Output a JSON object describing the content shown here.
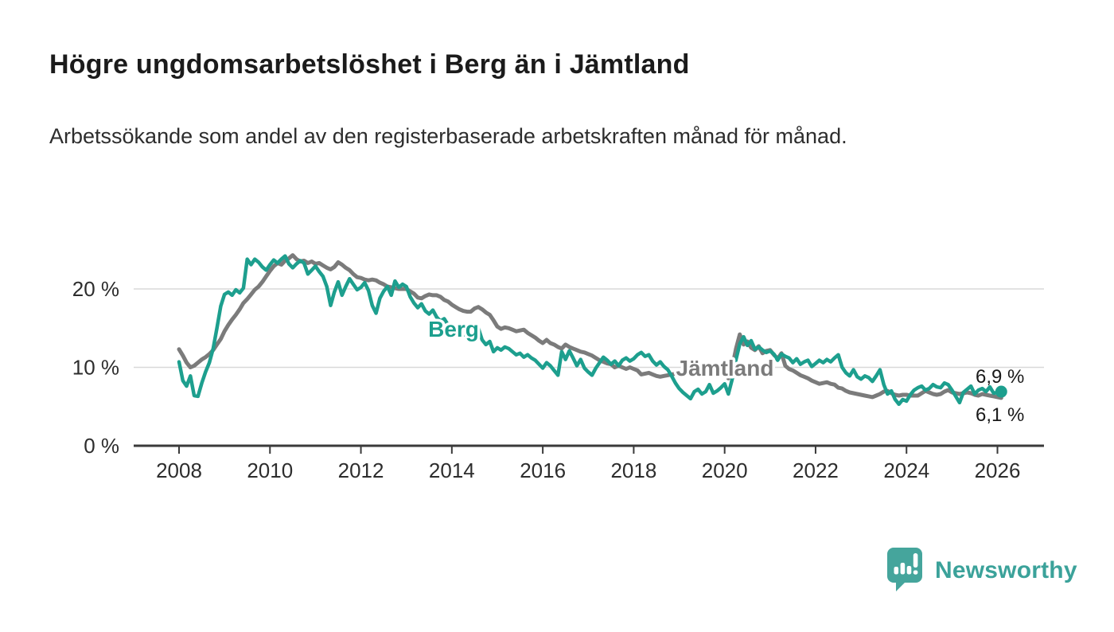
{
  "header": {
    "title": "Högre ungdomsarbetslöshet i Berg än i Jämtland",
    "subtitle": "Arbetssökande som andel av den registerbaserade arbetskraften månad för månad."
  },
  "branding": {
    "name": "Newsworthy",
    "logo_icon": "bar-chart-speech-bubble-icon",
    "logo_color": "#45a59c",
    "text_color": "#3ba29a"
  },
  "chart_data": {
    "type": "line",
    "title": "Högre ungdomsarbetslöshet i Berg än i Jämtland",
    "xlabel": "",
    "ylabel": "",
    "x_unit": "year-month",
    "x_start_year": 2008,
    "x_step_months": 1,
    "xlim": [
      2007.0,
      2027.05
    ],
    "ylim": [
      0,
      26.5
    ],
    "grid": "horizontal",
    "yticks": [
      {
        "value": 0,
        "label": "0 %"
      },
      {
        "value": 10,
        "label": "10 %"
      },
      {
        "value": 20,
        "label": "20 %"
      }
    ],
    "xticks": [
      {
        "value": 2008,
        "label": "2008"
      },
      {
        "value": 2010,
        "label": "2010"
      },
      {
        "value": 2012,
        "label": "2012"
      },
      {
        "value": 2014,
        "label": "2014"
      },
      {
        "value": 2016,
        "label": "2016"
      },
      {
        "value": 2018,
        "label": "2018"
      },
      {
        "value": 2020,
        "label": "2020"
      },
      {
        "value": 2022,
        "label": "2022"
      },
      {
        "value": 2024,
        "label": "2024"
      },
      {
        "value": 2026,
        "label": "2026"
      }
    ],
    "series": [
      {
        "name": "Jämtland",
        "color": "#7b7b7b",
        "stroke_width": 5,
        "end_value": 6.1,
        "end_label": "6,1 %",
        "values": [
          12.3,
          11.5,
          10.6,
          10.0,
          10.2,
          10.6,
          11.0,
          11.3,
          11.7,
          12.2,
          12.9,
          13.6,
          14.6,
          15.4,
          16.1,
          16.7,
          17.4,
          18.2,
          18.7,
          19.3,
          19.9,
          20.3,
          20.9,
          21.6,
          22.3,
          22.9,
          23.3,
          23.1,
          23.6,
          23.9,
          24.3,
          23.8,
          23.5,
          23.6,
          23.3,
          23.5,
          23.2,
          23.3,
          23.0,
          22.7,
          22.5,
          22.8,
          23.4,
          23.1,
          22.7,
          22.4,
          21.9,
          21.5,
          21.4,
          21.2,
          21.1,
          21.2,
          21.1,
          20.8,
          20.6,
          20.3,
          20.2,
          20.1,
          20.0,
          20.0,
          20.0,
          19.7,
          19.4,
          18.9,
          18.8,
          19.1,
          19.3,
          19.2,
          19.2,
          19.0,
          18.6,
          18.4,
          18.0,
          17.7,
          17.4,
          17.2,
          17.1,
          17.1,
          17.5,
          17.7,
          17.4,
          17.0,
          16.7,
          16.0,
          15.2,
          14.9,
          15.1,
          15.0,
          14.8,
          14.6,
          14.7,
          14.8,
          14.4,
          14.1,
          13.8,
          13.4,
          13.1,
          13.5,
          13.1,
          12.9,
          12.6,
          12.4,
          12.9,
          12.6,
          12.4,
          12.2,
          12.0,
          11.9,
          11.7,
          11.5,
          11.2,
          10.9,
          10.7,
          10.5,
          10.4,
          10.0,
          10.2,
          10.0,
          9.8,
          10.0,
          9.8,
          9.6,
          9.1,
          9.2,
          9.3,
          9.1,
          8.9,
          8.8,
          8.9,
          9.0,
          9.1,
          9.2,
          9.2,
          9.4,
          9.5,
          9.4,
          9.5,
          9.6,
          9.5,
          9.3,
          9.4,
          9.5,
          9.6,
          9.7,
          9.3,
          8.6,
          10.0,
          12.4,
          14.2,
          12.9,
          13.3,
          12.5,
          12.2,
          12.7,
          11.8,
          12.1,
          12.2,
          11.6,
          11.1,
          11.8,
          10.2,
          9.8,
          9.6,
          9.3,
          9.0,
          8.8,
          8.6,
          8.3,
          8.1,
          7.9,
          8.0,
          8.1,
          7.9,
          7.8,
          7.4,
          7.3,
          7.0,
          6.8,
          6.7,
          6.6,
          6.5,
          6.4,
          6.3,
          6.2,
          6.4,
          6.6,
          6.9,
          7.0,
          6.7,
          6.5,
          6.4,
          6.5,
          6.5,
          6.4,
          6.4,
          6.4,
          6.7,
          7.0,
          6.8,
          6.6,
          6.5,
          6.6,
          6.9,
          7.1,
          6.8,
          6.7,
          6.6,
          6.7,
          6.8,
          6.7,
          6.5,
          6.4,
          6.6,
          6.5,
          6.4,
          6.3,
          6.2,
          6.1
        ]
      },
      {
        "name": "Berg",
        "color": "#1d9f8e",
        "stroke_width": 4.5,
        "end_value": 6.9,
        "end_label": "6,9 %",
        "end_dot": true,
        "values": [
          10.7,
          8.3,
          7.6,
          8.9,
          6.4,
          6.3,
          8.0,
          9.4,
          10.6,
          12.4,
          15.0,
          17.8,
          19.3,
          19.6,
          19.2,
          19.9,
          19.5,
          20.1,
          23.8,
          23.1,
          23.8,
          23.4,
          22.8,
          22.4,
          23.1,
          23.7,
          23.3,
          23.8,
          24.2,
          23.2,
          22.7,
          23.2,
          23.6,
          23.3,
          21.9,
          22.4,
          22.9,
          22.2,
          21.6,
          20.3,
          17.9,
          19.6,
          20.9,
          19.2,
          20.3,
          21.3,
          20.6,
          19.9,
          20.2,
          20.8,
          19.8,
          17.9,
          16.9,
          18.8,
          19.7,
          20.3,
          19.2,
          21.0,
          20.2,
          20.6,
          20.3,
          19.0,
          18.2,
          17.6,
          18.1,
          17.2,
          16.8,
          17.3,
          16.4,
          15.9,
          16.2,
          15.4,
          15.2,
          15.0,
          14.9,
          14.4,
          13.9,
          14.2,
          14.6,
          15.0,
          13.5,
          12.9,
          13.3,
          12.0,
          12.5,
          12.2,
          12.6,
          12.4,
          12.0,
          11.6,
          11.8,
          11.3,
          11.6,
          11.2,
          10.9,
          10.4,
          9.9,
          10.6,
          10.2,
          9.6,
          9.0,
          12.0,
          11.0,
          12.1,
          11.2,
          10.2,
          11.0,
          9.9,
          9.4,
          9.0,
          9.9,
          10.6,
          11.3,
          10.9,
          10.4,
          10.8,
          10.2,
          10.9,
          11.2,
          10.8,
          11.1,
          11.6,
          11.9,
          11.4,
          11.6,
          10.8,
          10.3,
          10.7,
          10.1,
          9.7,
          8.9,
          8.0,
          7.3,
          6.8,
          6.4,
          6.0,
          6.9,
          7.2,
          6.6,
          6.9,
          7.8,
          6.7,
          7.0,
          7.4,
          7.9,
          6.6,
          8.5,
          11.0,
          13.0,
          13.9,
          12.8,
          13.4,
          12.3,
          12.6,
          12.2,
          11.9,
          12.1,
          11.7,
          10.9,
          11.7,
          11.4,
          11.2,
          10.6,
          11.1,
          10.4,
          10.7,
          10.9,
          10.1,
          10.5,
          10.9,
          10.6,
          11.0,
          10.7,
          11.2,
          11.6,
          10.0,
          9.3,
          8.9,
          9.7,
          8.8,
          8.5,
          8.9,
          8.7,
          8.2,
          8.9,
          9.7,
          7.8,
          6.6,
          7.0,
          5.9,
          5.3,
          5.9,
          5.7,
          6.5,
          7.1,
          7.4,
          7.6,
          7.1,
          7.3,
          7.8,
          7.5,
          7.4,
          8.0,
          7.8,
          7.1,
          6.3,
          5.5,
          6.8,
          7.2,
          7.6,
          6.6,
          7.1,
          7.3,
          6.9,
          7.5,
          6.7,
          6.8,
          6.9
        ]
      }
    ],
    "series_inline_labels": [
      {
        "series": "Berg",
        "text": "Berg",
        "color": "#1d9f8e"
      },
      {
        "series": "Jämtland",
        "text": "Jämtland",
        "color": "#7b7b7b"
      }
    ],
    "legend_position": "inline-on-lines"
  }
}
